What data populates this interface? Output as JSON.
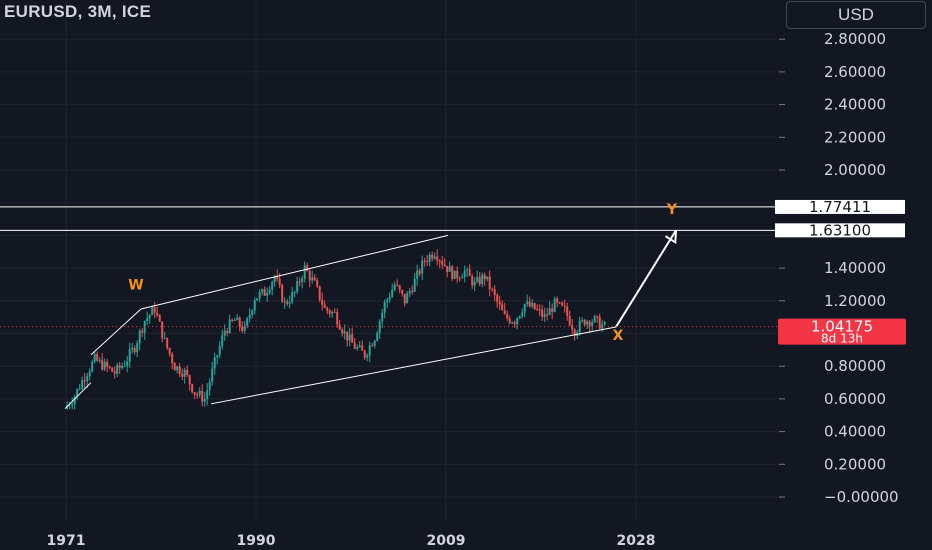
{
  "header": {
    "symbol": "EURUSD, 3M, ICE",
    "currency": "USD"
  },
  "colors": {
    "background": "#131722",
    "grid": "#1f2331",
    "up": "#26a69a",
    "down": "#ef5350",
    "drawing": "#ffffff",
    "wave_label": "#f7931a",
    "price_tag": "#f23645"
  },
  "chart_data": {
    "type": "candlestick",
    "x_ticks": [
      "1971",
      "1990",
      "2009",
      "2028"
    ],
    "y_ticks": [
      "2.80000",
      "2.60000",
      "2.40000",
      "2.20000",
      "2.00000",
      "1.40000",
      "1.20000",
      "0.80000",
      "0.60000",
      "0.40000",
      "0.20000",
      "−0.00000"
    ],
    "y_tick_values": [
      2.8,
      2.6,
      2.4,
      2.2,
      2.0,
      1.4,
      1.2,
      0.8,
      0.6,
      0.4,
      0.2,
      0.0
    ],
    "xlim": [
      1971,
      2032
    ],
    "ylim": [
      -0.12,
      3.0
    ],
    "price_lines": [
      {
        "value": 1.77411,
        "label": "1.77411"
      },
      {
        "value": 1.631,
        "label": "1.63100"
      }
    ],
    "last_price": {
      "value": 1.04175,
      "label": "1.04175",
      "countdown": "8d 13h"
    },
    "series": [
      {
        "name": "EURUSD",
        "points": [
          [
            1971.0,
            0.54
          ],
          [
            1972.0,
            0.62
          ],
          [
            1973.0,
            0.74
          ],
          [
            1974.0,
            0.84
          ],
          [
            1975.0,
            0.8
          ],
          [
            1976.0,
            0.76
          ],
          [
            1977.0,
            0.82
          ],
          [
            1978.0,
            0.92
          ],
          [
            1979.0,
            1.08
          ],
          [
            1980.0,
            1.15
          ],
          [
            1981.0,
            0.95
          ],
          [
            1982.0,
            0.8
          ],
          [
            1983.0,
            0.76
          ],
          [
            1984.0,
            0.64
          ],
          [
            1985.0,
            0.6
          ],
          [
            1986.0,
            0.82
          ],
          [
            1987.0,
            1.02
          ],
          [
            1988.0,
            1.08
          ],
          [
            1989.0,
            1.02
          ],
          [
            1990.0,
            1.22
          ],
          [
            1991.0,
            1.25
          ],
          [
            1992.0,
            1.35
          ],
          [
            1993.0,
            1.18
          ],
          [
            1994.0,
            1.25
          ],
          [
            1995.0,
            1.4
          ],
          [
            1996.0,
            1.3
          ],
          [
            1997.0,
            1.15
          ],
          [
            1998.0,
            1.12
          ],
          [
            1999.0,
            1.0
          ],
          [
            2000.0,
            0.92
          ],
          [
            2001.0,
            0.87
          ],
          [
            2002.0,
            0.98
          ],
          [
            2003.0,
            1.18
          ],
          [
            2004.0,
            1.3
          ],
          [
            2005.0,
            1.2
          ],
          [
            2006.0,
            1.32
          ],
          [
            2007.0,
            1.45
          ],
          [
            2008.0,
            1.5
          ],
          [
            2009.0,
            1.42
          ],
          [
            2010.0,
            1.35
          ],
          [
            2011.0,
            1.38
          ],
          [
            2012.0,
            1.3
          ],
          [
            2013.0,
            1.35
          ],
          [
            2014.0,
            1.22
          ],
          [
            2015.0,
            1.1
          ],
          [
            2016.0,
            1.08
          ],
          [
            2017.0,
            1.18
          ],
          [
            2018.0,
            1.15
          ],
          [
            2019.0,
            1.1
          ],
          [
            2020.0,
            1.18
          ],
          [
            2021.0,
            1.14
          ],
          [
            2022.0,
            1.02
          ],
          [
            2023.0,
            1.08
          ],
          [
            2024.0,
            1.08
          ],
          [
            2025.0,
            1.04
          ]
        ]
      }
    ],
    "drawings": {
      "channel_upper": [
        [
          1978.5,
          1.15
        ],
        [
          2009.2,
          1.6
        ]
      ],
      "channel_lower": [
        [
          1985.5,
          0.57
        ],
        [
          2026.0,
          1.04
        ]
      ],
      "early_upper": [
        [
          1973.5,
          0.87
        ],
        [
          1978.5,
          1.15
        ]
      ],
      "early_lower": [
        [
          1970.9,
          0.54
        ],
        [
          1973.5,
          0.7
        ]
      ],
      "projection": [
        [
          2026.0,
          1.04
        ],
        [
          2032.0,
          1.631
        ]
      ]
    },
    "wave_labels": [
      {
        "label": "W",
        "x": 1978.0,
        "y": 1.27
      },
      {
        "label": "X",
        "x": 2026.2,
        "y": 0.96
      },
      {
        "label": "Y",
        "x": 2031.6,
        "y": 1.73
      }
    ]
  }
}
